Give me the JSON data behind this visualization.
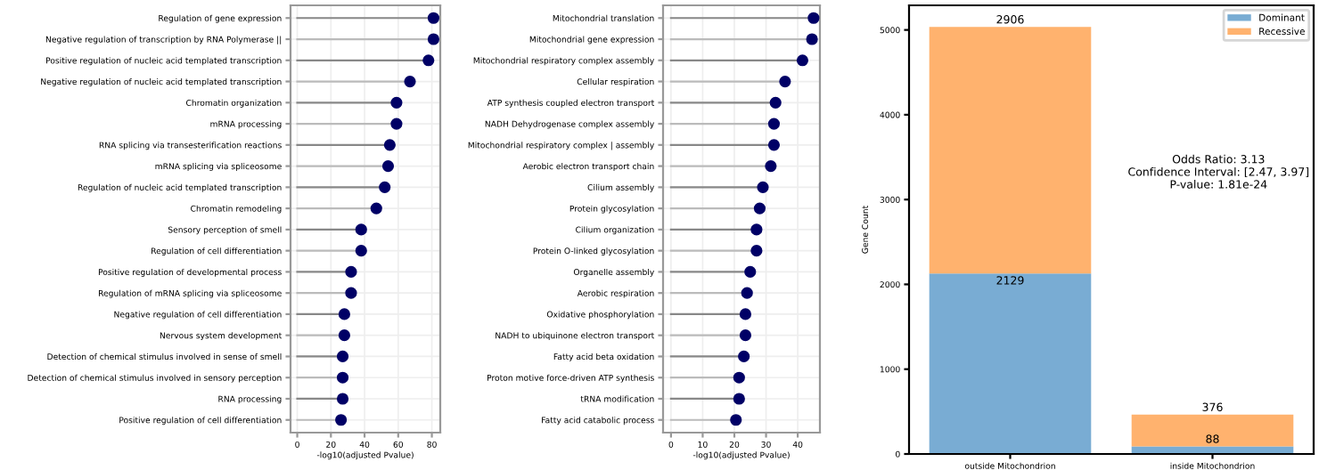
{
  "chart_data": [
    {
      "type": "lollipop",
      "orientation": "horizontal",
      "xlabel": "-log10(adjusted Pvalue)",
      "grid": true,
      "marker": "circle",
      "categories": [
        "Regulation of gene expression",
        "Negative regulation of transcription by RNA Polymerase ||",
        "Positive regulation of nucleic acid templated transcription",
        "Negative regulation of nucleic acid templated transcription",
        "Chromatin organization",
        "mRNA processing",
        "RNA splicing via transesterification reactions",
        "mRNA splicing via spliceosome",
        "Regulation of nucleic acid templated transcription",
        "Chromatin remodeling",
        "Sensory perception of smell",
        "Regulation of cell differentiation",
        "Positive regulation of developmental process",
        "Regulation of mRNA splicing via spliceosome",
        "Negative regulation of cell differentiation",
        "Nervous system development",
        "Detection of chemical stimulus involved in sense of smell",
        "Detection of chemical stimulus involved in sensory perception",
        "RNA processing",
        "Positive regulation of cell differentiation"
      ],
      "series": [
        {
          "color": "#000066",
          "values": [
            81,
            81,
            78,
            67,
            59,
            59,
            55,
            54,
            52,
            47,
            38,
            38,
            32,
            32,
            28,
            28,
            27,
            27,
            27,
            26
          ]
        }
      ],
      "xlim": [
        -4,
        85
      ],
      "xticks": [
        0,
        20,
        40,
        60,
        80
      ]
    },
    {
      "type": "lollipop",
      "orientation": "horizontal",
      "xlabel": "-log10(adjusted Pvalue)",
      "grid": true,
      "marker": "circle",
      "categories": [
        "Mitochondrial translation",
        "Mitochondrial gene expression",
        "Mitochondrial respiratory complex assembly",
        "Cellular respiration",
        "ATP synthesis coupled electron transport",
        "NADH Dehydrogenase complex assembly",
        "Mitochondrial respiratory complex | assembly",
        "Aerobic electron transport chain",
        "Cilium assembly",
        "Protein glycosylation",
        "Cilium organization",
        "Protein O-linked glycosylation",
        "Organelle assembly",
        "Aerobic respiration",
        "Oxidative phosphorylation",
        "NADH to ubiquinone electron transport",
        "Fatty acid beta oxidation",
        "Proton motive force-driven ATP synthesis",
        "tRNA modification",
        "Fatty acid catabolic process"
      ],
      "series": [
        {
          "color": "#000066",
          "values": [
            45,
            44.5,
            41.5,
            36,
            33,
            32.5,
            32.5,
            31.5,
            29,
            28,
            27,
            27,
            25,
            24,
            23.5,
            23.5,
            23,
            21.5,
            21.5,
            20.5
          ]
        }
      ],
      "xlim": [
        -2.5,
        47
      ],
      "xticks": [
        0,
        10,
        20,
        30,
        40
      ]
    },
    {
      "type": "bar",
      "stacked": true,
      "ylabel": "Gene Count",
      "legend": "top right",
      "categories": [
        "outside Mitochondrion",
        "inside Mitochondrion"
      ],
      "series": [
        {
          "name": "Dominant",
          "color": "#79acd3",
          "values": [
            2129,
            88
          ],
          "value_labels": [
            "2129",
            "88"
          ]
        },
        {
          "name": "Recessive",
          "color": "#ffb26e",
          "values": [
            2906,
            376
          ],
          "value_labels": [
            "2906",
            "376"
          ]
        }
      ],
      "ylim": [
        0,
        5290
      ],
      "yticks": [
        0,
        1000,
        2000,
        3000,
        4000,
        5000
      ],
      "annotations": [
        "Odds Ratio: 3.13",
        "Confidence Interval: [2.47, 3.97]",
        "P-value: 1.81e-24"
      ]
    }
  ]
}
